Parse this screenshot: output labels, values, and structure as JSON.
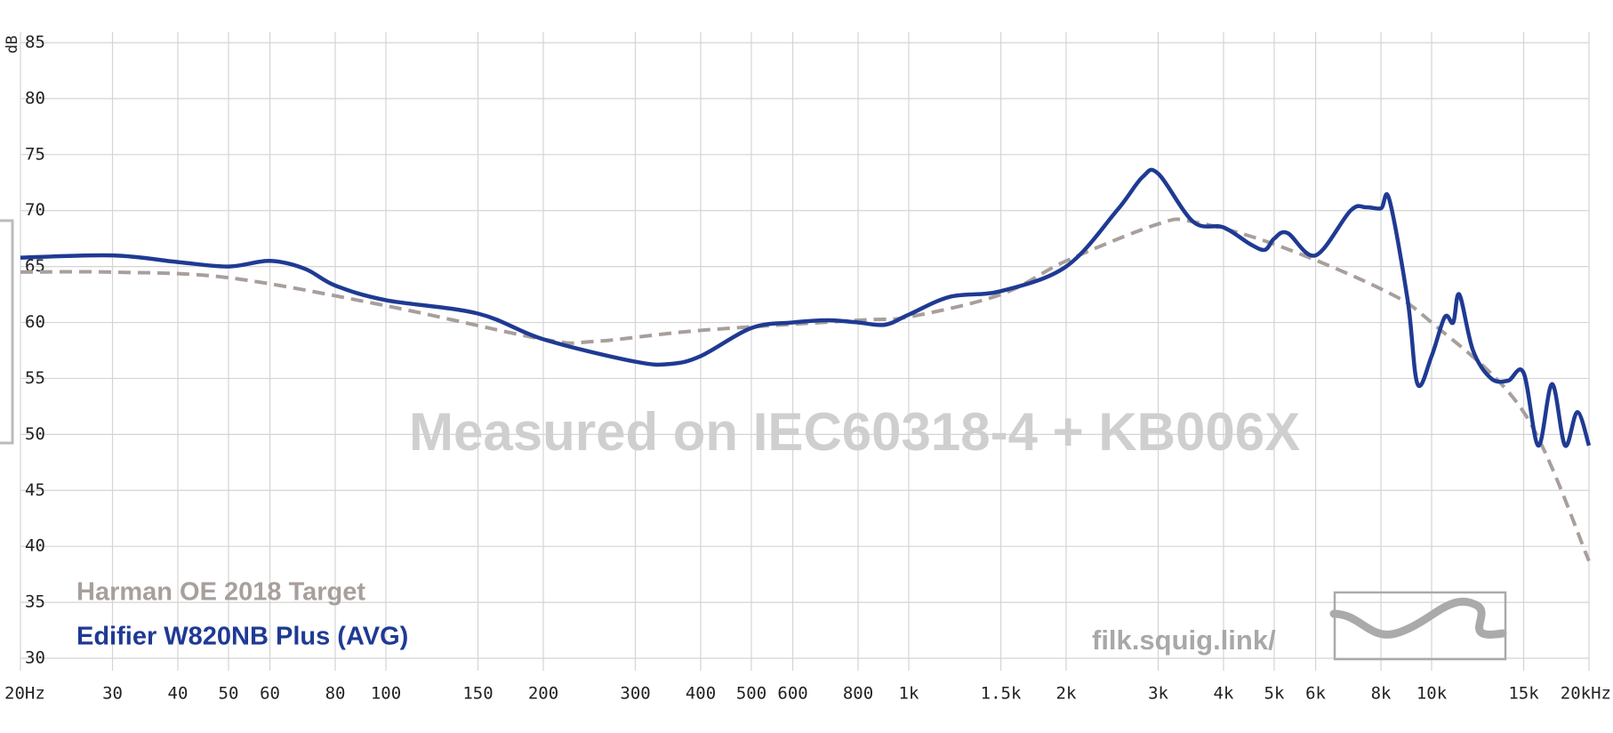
{
  "chart_data": {
    "type": "line",
    "y_label": "dB",
    "watermark": "Measured on IEC60318-4 + KB006X",
    "site": "filk.squig.link/",
    "x_log": true,
    "grid": true,
    "xlim": [
      20,
      20000
    ],
    "ylim": [
      30,
      85
    ],
    "yticks": [
      30,
      35,
      40,
      45,
      50,
      55,
      60,
      65,
      70,
      75,
      80,
      85
    ],
    "xticks": [
      {
        "value": 20,
        "label": "20Hz"
      },
      30,
      40,
      50,
      60,
      80,
      100,
      150,
      200,
      300,
      400,
      500,
      600,
      800,
      {
        "value": 1000,
        "label": "1k"
      },
      {
        "value": 1500,
        "label": "1.5k"
      },
      {
        "value": 2000,
        "label": "2k"
      },
      {
        "value": 3000,
        "label": "3k"
      },
      {
        "value": 4000,
        "label": "4k"
      },
      {
        "value": 5000,
        "label": "5k"
      },
      {
        "value": 6000,
        "label": "6k"
      },
      {
        "value": 8000,
        "label": "8k"
      },
      {
        "value": 10000,
        "label": "10k"
      },
      {
        "value": 15000,
        "label": "15k"
      },
      {
        "value": 20000,
        "label": "20kHz"
      }
    ],
    "series": [
      {
        "name": "Harman OE 2018 Target",
        "color": "#a89f9c",
        "dashed": true,
        "x": [
          20,
          30,
          50,
          100,
          200,
          250,
          400,
          800,
          1000,
          1500,
          2000,
          3000,
          3500,
          5000,
          8000,
          10000,
          15000,
          20000
        ],
        "values": [
          64.5,
          64.5,
          64.0,
          61.5,
          58.5,
          58.3,
          59.3,
          60.2,
          60.5,
          62.5,
          65.5,
          68.8,
          69.0,
          67.0,
          63.0,
          60.0,
          52.0,
          38.7
        ]
      },
      {
        "name": "Edifier W820NB Plus (AVG)",
        "color": "#1f3a93",
        "dashed": false,
        "x": [
          20,
          30,
          40,
          50,
          60,
          70,
          80,
          100,
          150,
          200,
          300,
          350,
          400,
          500,
          600,
          700,
          800,
          900,
          1000,
          1200,
          1500,
          2000,
          2500,
          2800,
          3000,
          3500,
          4000,
          4500,
          4800,
          5000,
          5300,
          6000,
          7000,
          7500,
          8000,
          8300,
          9000,
          9400,
          10000,
          10600,
          11000,
          11300,
          12000,
          13000,
          14000,
          15000,
          16000,
          17000,
          18000,
          19000,
          20000
        ],
        "values": [
          65.8,
          66.0,
          65.4,
          65.0,
          65.5,
          64.8,
          63.3,
          62.0,
          60.8,
          58.5,
          56.5,
          56.3,
          57.0,
          59.5,
          60.0,
          60.2,
          60.0,
          59.8,
          60.7,
          62.3,
          62.8,
          65.0,
          70.0,
          73.0,
          73.3,
          69.0,
          68.5,
          67.0,
          66.5,
          67.5,
          68.0,
          66.0,
          70.0,
          70.3,
          70.2,
          71.0,
          62.0,
          54.5,
          57.0,
          60.5,
          60.0,
          62.5,
          57.5,
          55.0,
          54.8,
          55.5,
          49.0,
          54.5,
          49.0,
          52.0,
          49.0
        ]
      }
    ]
  }
}
